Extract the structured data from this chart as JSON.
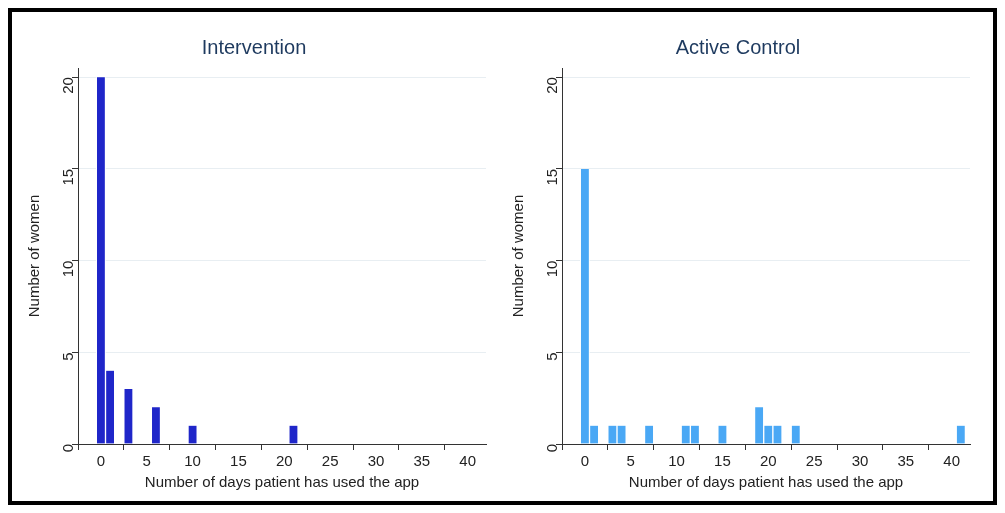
{
  "chart_data": [
    {
      "type": "histogram",
      "title": "Intervention",
      "xlabel": "Number of days patient has used the app",
      "ylabel": "Number of women",
      "bins": [
        -0.5,
        0.5,
        1.5,
        2.5,
        3.5,
        4.5,
        5.5,
        6.5,
        7.5,
        8.5,
        9.5,
        10.5,
        11.5,
        12.5,
        13.5,
        14.5,
        15.5,
        16.5,
        17.5,
        18.5,
        19.5,
        20.5,
        21.5,
        22.5,
        23.5,
        24.5,
        25.5,
        26.5,
        27.5,
        28.5,
        29.5,
        30.5,
        31.5,
        32.5,
        33.5,
        34.5,
        35.5,
        36.5,
        37.5,
        38.5,
        39.5,
        40.5,
        41.5
      ],
      "values": [
        20,
        4,
        0,
        3,
        0,
        0,
        2,
        0,
        0,
        0,
        1,
        0,
        0,
        0,
        0,
        0,
        0,
        0,
        0,
        0,
        0,
        1,
        0,
        0,
        0,
        0,
        0,
        0,
        0,
        0,
        0,
        0,
        0,
        0,
        0,
        0,
        0,
        0,
        0,
        0,
        0,
        0
      ],
      "color": "#1f26c9",
      "xlim": [
        -2.5,
        42
      ],
      "xticks": [
        0,
        5,
        10,
        15,
        20,
        25,
        30,
        35,
        40
      ],
      "ylim": [
        0,
        20.5
      ],
      "yticks": [
        0,
        5,
        10,
        15,
        20
      ],
      "grid": "y",
      "legend": false
    },
    {
      "type": "histogram",
      "title": "Active Control",
      "xlabel": "Number of days patient has used the app",
      "ylabel": "Number of women",
      "bins": [
        -0.5,
        0.5,
        1.5,
        2.5,
        3.5,
        4.5,
        5.5,
        6.5,
        7.5,
        8.5,
        9.5,
        10.5,
        11.5,
        12.5,
        13.5,
        14.5,
        15.5,
        16.5,
        17.5,
        18.5,
        19.5,
        20.5,
        21.5,
        22.5,
        23.5,
        24.5,
        25.5,
        26.5,
        27.5,
        28.5,
        29.5,
        30.5,
        31.5,
        32.5,
        33.5,
        34.5,
        35.5,
        36.5,
        37.5,
        38.5,
        39.5,
        40.5,
        41.5
      ],
      "values": [
        15,
        1,
        0,
        1,
        1,
        0,
        0,
        1,
        0,
        0,
        0,
        1,
        1,
        0,
        0,
        1,
        0,
        0,
        0,
        2,
        1,
        1,
        0,
        1,
        0,
        0,
        0,
        0,
        0,
        0,
        0,
        0,
        0,
        0,
        0,
        0,
        0,
        0,
        0,
        0,
        0,
        1
      ],
      "color": "#4aa8f5",
      "xlim": [
        -2.5,
        42
      ],
      "xticks": [
        0,
        5,
        10,
        15,
        20,
        25,
        30,
        35,
        40
      ],
      "ylim": [
        0,
        20.5
      ],
      "yticks": [
        0,
        5,
        10,
        15,
        20
      ],
      "grid": "y",
      "legend": false
    }
  ]
}
